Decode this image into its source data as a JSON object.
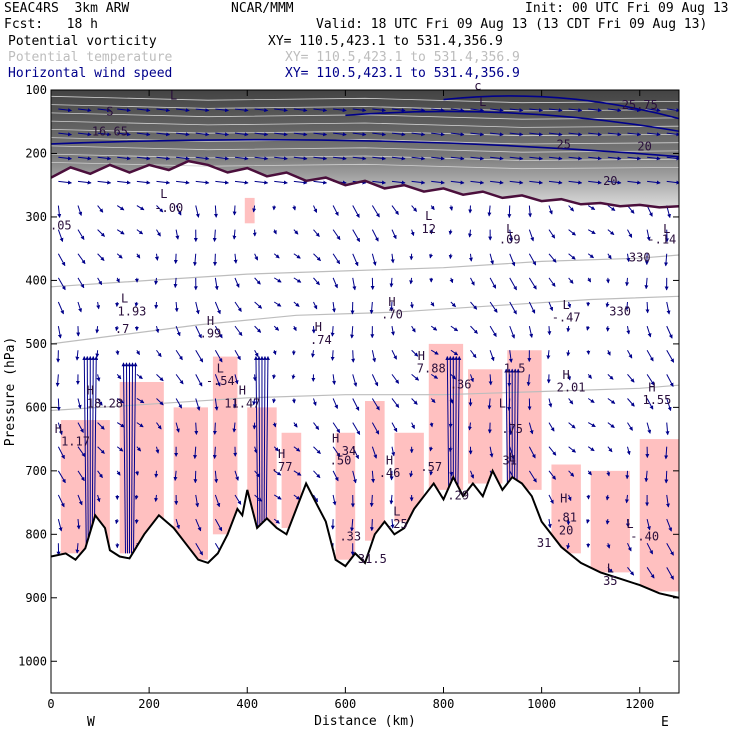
{
  "header": {
    "model": "SEAC4RS  3km ARW",
    "org": "NCAR/MMM",
    "init": "Init: 00 UTC Fri 09 Aug 13",
    "fcst": "Fcst:   18 h",
    "valid": "Valid: 18 UTC Fri 09 Aug 13 (13 CDT Fri 09 Aug 13)",
    "fields": [
      {
        "name": "Potential vorticity",
        "xy": "XY= 110.5,423.1 to 531.4,356.9"
      },
      {
        "name": "Potential temperature",
        "xy": "XY= 110.5,423.1 to 531.4,356.9"
      },
      {
        "name": "Horizontal wind speed",
        "xy": "XY= 110.5,423.1 to 531.4,356.9"
      }
    ]
  },
  "colors": {
    "pv": "#000000",
    "theta": "#bdbdbd",
    "wind": "#00008b",
    "tropopause": "#4b0f3c",
    "cloud": "#ffc0c0"
  },
  "chart_data": {
    "type": "cross-section",
    "xlabel": "Distance (km)",
    "ylabel": "Pressure (hPa)",
    "xlim": [
      0,
      1280
    ],
    "ylim": [
      1050,
      100
    ],
    "x_ticks": [
      0,
      200,
      400,
      600,
      800,
      1000,
      1200
    ],
    "y_ticks": [
      100,
      200,
      300,
      400,
      500,
      600,
      700,
      800,
      900,
      1000
    ],
    "end_labels": {
      "left": "W",
      "right": "E"
    },
    "terrain": [
      [
        0,
        835
      ],
      [
        30,
        830
      ],
      [
        50,
        840
      ],
      [
        70,
        822
      ],
      [
        90,
        770
      ],
      [
        110,
        790
      ],
      [
        120,
        825
      ],
      [
        140,
        835
      ],
      [
        160,
        838
      ],
      [
        190,
        800
      ],
      [
        220,
        770
      ],
      [
        250,
        790
      ],
      [
        270,
        810
      ],
      [
        300,
        840
      ],
      [
        320,
        845
      ],
      [
        340,
        830
      ],
      [
        360,
        800
      ],
      [
        380,
        760
      ],
      [
        390,
        770
      ],
      [
        400,
        730
      ],
      [
        420,
        790
      ],
      [
        440,
        775
      ],
      [
        460,
        790
      ],
      [
        480,
        800
      ],
      [
        500,
        760
      ],
      [
        520,
        720
      ],
      [
        540,
        750
      ],
      [
        560,
        780
      ],
      [
        580,
        840
      ],
      [
        600,
        850
      ],
      [
        620,
        830
      ],
      [
        640,
        845
      ],
      [
        660,
        800
      ],
      [
        680,
        780
      ],
      [
        700,
        800
      ],
      [
        720,
        790
      ],
      [
        740,
        760
      ],
      [
        760,
        740
      ],
      [
        780,
        720
      ],
      [
        800,
        745
      ],
      [
        820,
        710
      ],
      [
        840,
        740
      ],
      [
        860,
        720
      ],
      [
        880,
        740
      ],
      [
        900,
        700
      ],
      [
        920,
        730
      ],
      [
        940,
        710
      ],
      [
        960,
        720
      ],
      [
        980,
        740
      ],
      [
        1000,
        780
      ],
      [
        1040,
        820
      ],
      [
        1080,
        845
      ],
      [
        1120,
        860
      ],
      [
        1160,
        870
      ],
      [
        1200,
        880
      ],
      [
        1240,
        893
      ],
      [
        1280,
        900
      ]
    ],
    "dynamic_tropopause_2pvu": [
      [
        0,
        238
      ],
      [
        40,
        222
      ],
      [
        80,
        232
      ],
      [
        120,
        218
      ],
      [
        160,
        230
      ],
      [
        200,
        218
      ],
      [
        240,
        226
      ],
      [
        280,
        212
      ],
      [
        320,
        218
      ],
      [
        360,
        230
      ],
      [
        400,
        223
      ],
      [
        440,
        236
      ],
      [
        480,
        230
      ],
      [
        520,
        243
      ],
      [
        560,
        238
      ],
      [
        600,
        250
      ],
      [
        640,
        243
      ],
      [
        680,
        255
      ],
      [
        720,
        250
      ],
      [
        760,
        260
      ],
      [
        800,
        255
      ],
      [
        840,
        265
      ],
      [
        880,
        260
      ],
      [
        920,
        270
      ],
      [
        960,
        266
      ],
      [
        1000,
        275
      ],
      [
        1040,
        272
      ],
      [
        1080,
        280
      ],
      [
        1120,
        278
      ],
      [
        1160,
        283
      ],
      [
        1200,
        281
      ],
      [
        1240,
        285
      ],
      [
        1280,
        283
      ]
    ],
    "theta_contours": [
      {
        "label": "330",
        "points": [
          [
            0,
            410
          ],
          [
            200,
            400
          ],
          [
            400,
            390
          ],
          [
            600,
            385
          ],
          [
            800,
            380
          ],
          [
            1000,
            370
          ],
          [
            1200,
            365
          ],
          [
            1280,
            360
          ]
        ]
      },
      {
        "label": "",
        "points": [
          [
            0,
            500
          ],
          [
            150,
            485
          ],
          [
            300,
            470
          ],
          [
            500,
            455
          ],
          [
            700,
            450
          ],
          [
            900,
            440
          ],
          [
            1100,
            430
          ],
          [
            1280,
            425
          ]
        ]
      },
      {
        "label": "",
        "points": [
          [
            0,
            605
          ],
          [
            200,
            595
          ],
          [
            400,
            585
          ],
          [
            600,
            580
          ],
          [
            800,
            580
          ],
          [
            1000,
            575
          ],
          [
            1200,
            570
          ],
          [
            1280,
            565
          ]
        ]
      }
    ],
    "cloud_regions": [
      {
        "x": [
          20,
          120
        ],
        "top": 620,
        "bottom": 830
      },
      {
        "x": [
          140,
          230
        ],
        "top": 560,
        "bottom": 830
      },
      {
        "x": [
          250,
          320
        ],
        "top": 600,
        "bottom": 840
      },
      {
        "x": [
          330,
          380
        ],
        "top": 520,
        "bottom": 800
      },
      {
        "x": [
          400,
          460
        ],
        "top": 600,
        "bottom": 790
      },
      {
        "x": [
          470,
          510
        ],
        "top": 640,
        "bottom": 790
      },
      {
        "x": [
          580,
          620
        ],
        "top": 640,
        "bottom": 840
      },
      {
        "x": [
          640,
          680
        ],
        "top": 590,
        "bottom": 810
      },
      {
        "x": [
          700,
          760
        ],
        "top": 640,
        "bottom": 780
      },
      {
        "x": [
          770,
          840
        ],
        "top": 500,
        "bottom": 730
      },
      {
        "x": [
          850,
          920
        ],
        "top": 540,
        "bottom": 720
      },
      {
        "x": [
          930,
          1000
        ],
        "top": 510,
        "bottom": 730
      },
      {
        "x": [
          1020,
          1080
        ],
        "top": 690,
        "bottom": 830
      },
      {
        "x": [
          1100,
          1180
        ],
        "top": 700,
        "bottom": 860
      },
      {
        "x": [
          1200,
          1280
        ],
        "top": 650,
        "bottom": 890
      },
      {
        "x": [
          395,
          415
        ],
        "top": 270,
        "bottom": 310
      }
    ],
    "annotations": [
      {
        "x": 230,
        "p": 270,
        "text": "L"
      },
      {
        "x": 240,
        "p": 292,
        "text": "-.00"
      },
      {
        "x": 20,
        "p": 320,
        "text": ".05"
      },
      {
        "x": 770,
        "p": 305,
        "text": "L"
      },
      {
        "x": 770,
        "p": 325,
        "text": "12"
      },
      {
        "x": 935,
        "p": 325,
        "text": "L"
      },
      {
        "x": 935,
        "p": 342,
        "text": ".09"
      },
      {
        "x": 1255,
        "p": 325,
        "text": "L"
      },
      {
        "x": 1245,
        "p": 342,
        "text": "-.14"
      },
      {
        "x": 1200,
        "p": 370,
        "text": "330"
      },
      {
        "x": 150,
        "p": 435,
        "text": "L"
      },
      {
        "x": 165,
        "p": 455,
        "text": "1.93"
      },
      {
        "x": 145,
        "p": 483,
        "text": ".7"
      },
      {
        "x": 695,
        "p": 440,
        "text": "H"
      },
      {
        "x": 695,
        "p": 460,
        "text": ".70"
      },
      {
        "x": 1050,
        "p": 445,
        "text": "L"
      },
      {
        "x": 1050,
        "p": 465,
        "text": "-.47"
      },
      {
        "x": 1160,
        "p": 455,
        "text": "330"
      },
      {
        "x": 325,
        "p": 470,
        "text": "H"
      },
      {
        "x": 325,
        "p": 490,
        "text": ".99"
      },
      {
        "x": 545,
        "p": 480,
        "text": "H"
      },
      {
        "x": 550,
        "p": 500,
        "text": ".74"
      },
      {
        "x": 755,
        "p": 525,
        "text": "H"
      },
      {
        "x": 775,
        "p": 545,
        "text": "7.88"
      },
      {
        "x": 945,
        "p": 545,
        "text": "1.5"
      },
      {
        "x": 345,
        "p": 545,
        "text": "L"
      },
      {
        "x": 345,
        "p": 565,
        "text": "-.54"
      },
      {
        "x": 835,
        "p": 570,
        "text": ".36"
      },
      {
        "x": 1050,
        "p": 555,
        "text": "H"
      },
      {
        "x": 1060,
        "p": 575,
        "text": "2.01"
      },
      {
        "x": 1225,
        "p": 575,
        "text": "H"
      },
      {
        "x": 1235,
        "p": 595,
        "text": "1.55"
      },
      {
        "x": 80,
        "p": 580,
        "text": "H"
      },
      {
        "x": 110,
        "p": 600,
        "text": "18.28"
      },
      {
        "x": 390,
        "p": 580,
        "text": "H"
      },
      {
        "x": 390,
        "p": 600,
        "text": "11.47"
      },
      {
        "x": 920,
        "p": 600,
        "text": "L"
      },
      {
        "x": 940,
        "p": 640,
        "text": ".75"
      },
      {
        "x": 15,
        "p": 640,
        "text": "H"
      },
      {
        "x": 50,
        "p": 660,
        "text": "1.17"
      },
      {
        "x": 580,
        "p": 655,
        "text": "H"
      },
      {
        "x": 600,
        "p": 675,
        "text": ".34"
      },
      {
        "x": 590,
        "p": 690,
        "text": ".50"
      },
      {
        "x": 470,
        "p": 680,
        "text": "H"
      },
      {
        "x": 470,
        "p": 700,
        "text": ".77"
      },
      {
        "x": 940,
        "p": 685,
        "text": "L"
      },
      {
        "x": 935,
        "p": 690,
        "text": "31"
      },
      {
        "x": 690,
        "p": 690,
        "text": "H"
      },
      {
        "x": 690,
        "p": 710,
        "text": ".46"
      },
      {
        "x": 775,
        "p": 700,
        "text": ".57"
      },
      {
        "x": 830,
        "p": 745,
        "text": ".29"
      },
      {
        "x": 1045,
        "p": 750,
        "text": "H"
      },
      {
        "x": 1050,
        "p": 780,
        "text": ".81"
      },
      {
        "x": 1050,
        "p": 800,
        "text": "20"
      },
      {
        "x": 705,
        "p": 770,
        "text": "L"
      },
      {
        "x": 705,
        "p": 790,
        "text": ".25"
      },
      {
        "x": 610,
        "p": 810,
        "text": ".33"
      },
      {
        "x": 1180,
        "p": 790,
        "text": "L"
      },
      {
        "x": 1210,
        "p": 810,
        "text": "-.40"
      },
      {
        "x": 1005,
        "p": 820,
        "text": "31"
      },
      {
        "x": 655,
        "p": 845,
        "text": "31.5"
      },
      {
        "x": 1140,
        "p": 860,
        "text": "L"
      },
      {
        "x": 1140,
        "p": 880,
        "text": "35"
      }
    ],
    "upper_annotations": [
      {
        "x": 120,
        "p": 140,
        "text": "S"
      },
      {
        "x": 250,
        "p": 115,
        "text": "L"
      },
      {
        "x": 880,
        "p": 125,
        "text": "L"
      },
      {
        "x": 1200,
        "p": 130,
        "text": "25.75"
      },
      {
        "x": 1045,
        "p": 192,
        "text": "25"
      },
      {
        "x": 1210,
        "p": 195,
        "text": "20"
      },
      {
        "x": 1140,
        "p": 250,
        "text": "20"
      },
      {
        "x": 120,
        "p": 172,
        "text": "16.65"
      },
      {
        "x": 870,
        "p": 100,
        "text": "c"
      }
    ]
  }
}
